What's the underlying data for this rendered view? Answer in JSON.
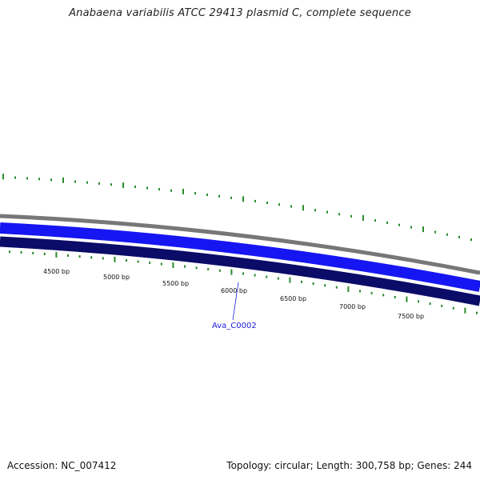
{
  "title": "Anabaena variabilis ATCC 29413 plasmid C, complete sequence",
  "accession": "Accession: NC_007412",
  "summary": "Topology: circular; Length: 300,758 bp; Genes: 244",
  "colors": {
    "outer_track": "#7a7a7a",
    "forward_track": "#1515f0",
    "reverse_track": "#0a0a66",
    "tick": "#2a8a2a",
    "gene_label": "#1a1adc"
  },
  "scale": {
    "labels": [
      "4500 bp",
      "5000 bp",
      "5500 bp",
      "6000 bp",
      "6500 bp",
      "7000 bp",
      "7500 bp"
    ]
  },
  "genes": [
    {
      "name": "Ava_C0002"
    }
  ]
}
